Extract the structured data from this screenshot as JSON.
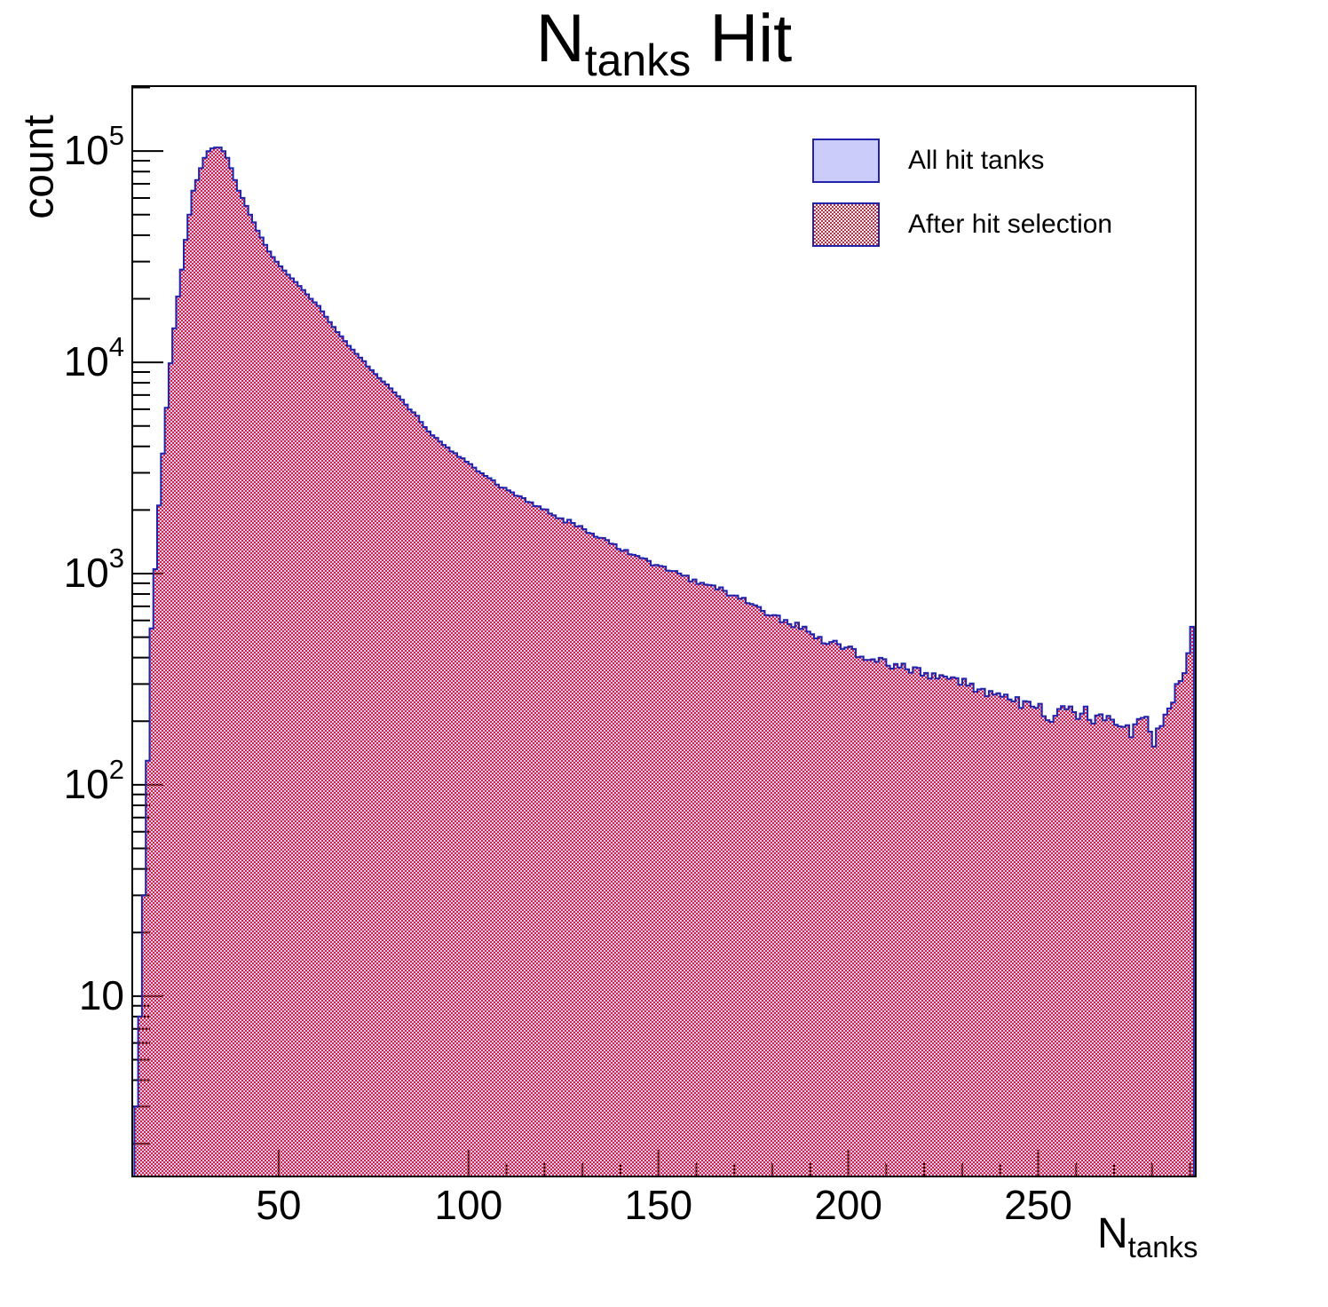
{
  "title": {
    "prefix": "N",
    "subscript": "tanks",
    "suffix": " Hit"
  },
  "y_axis": {
    "title": "count",
    "scale": "log",
    "decade_exponents": [
      1,
      2,
      3,
      4,
      5
    ]
  },
  "x_axis": {
    "title_main": "N",
    "title_sub": "tanks",
    "major_ticks": [
      50,
      100,
      150,
      200,
      250
    ],
    "minor_step": 10
  },
  "legend": {
    "items": [
      {
        "label": "All hit tanks",
        "swatch": "solid"
      },
      {
        "label": "After hit selection",
        "swatch": "checker"
      }
    ]
  },
  "colors": {
    "all_fill": "#ccccfa",
    "selected_red": "#d6253c",
    "outline_blue": "#2222aa",
    "frame": "#000000"
  },
  "chart_data": {
    "type": "bar",
    "subtype": "overlaid-step-histograms",
    "title": "N_tanks Hit",
    "xlabel": "N_tanks",
    "ylabel": "count",
    "ylog": true,
    "xlim": [
      11.45,
      291.5
    ],
    "ylim": [
      1.4,
      203000
    ],
    "bin_width": 1,
    "bin_range": [
      12,
      290
    ],
    "grid": false,
    "legend_position": "top-right",
    "series_note": "Both series overlap almost exactly; 'After hit selection' (red checker) is drawn over 'All hit tanks' (lavender). Bin counts below are anchor points read from the plot; intermediate bins follow log-linear interpolation with Poisson-scale fluctuation.",
    "series": [
      {
        "name": "All hit tanks",
        "source": "anchors"
      },
      {
        "name": "After hit selection",
        "source": "anchors"
      }
    ],
    "anchors": [
      [
        12,
        3
      ],
      [
        13,
        8
      ],
      [
        14,
        30
      ],
      [
        15,
        130
      ],
      [
        16,
        550
      ],
      [
        17,
        1050
      ],
      [
        18,
        2100
      ],
      [
        19,
        3700
      ],
      [
        20,
        6100
      ],
      [
        21,
        9900
      ],
      [
        22,
        14500
      ],
      [
        23,
        20500
      ],
      [
        24,
        27500
      ],
      [
        25,
        38000
      ],
      [
        26,
        50000
      ],
      [
        27,
        65000
      ],
      [
        28,
        73000
      ],
      [
        29,
        83000
      ],
      [
        30,
        93000
      ],
      [
        31,
        100000
      ],
      [
        32,
        103000
      ],
      [
        33,
        104000
      ],
      [
        34,
        104000
      ],
      [
        35,
        100000
      ],
      [
        36,
        93000
      ],
      [
        37,
        83000
      ],
      [
        38,
        73000
      ],
      [
        39,
        65000
      ],
      [
        40,
        60000
      ],
      [
        41,
        55000
      ],
      [
        42,
        50000
      ],
      [
        43,
        46000
      ],
      [
        44,
        42000
      ],
      [
        45,
        39000
      ],
      [
        46,
        36000
      ],
      [
        47,
        33500
      ],
      [
        48,
        31500
      ],
      [
        50,
        28500
      ],
      [
        52,
        26000
      ],
      [
        54,
        24000
      ],
      [
        56,
        22000
      ],
      [
        58,
        20000
      ],
      [
        60,
        18500
      ],
      [
        63,
        15500
      ],
      [
        66,
        13200
      ],
      [
        70,
        11000
      ],
      [
        75,
        8800
      ],
      [
        80,
        7200
      ],
      [
        85,
        5800
      ],
      [
        89,
        4700
      ],
      [
        95,
        3800
      ],
      [
        100,
        3300
      ],
      [
        107,
        2650
      ],
      [
        114,
        2250
      ],
      [
        121,
        1930
      ],
      [
        128,
        1700
      ],
      [
        135,
        1450
      ],
      [
        142,
        1250
      ],
      [
        149,
        1100
      ],
      [
        156,
        980
      ],
      [
        163,
        870
      ],
      [
        170,
        780
      ],
      [
        176,
        680
      ],
      [
        182,
        600
      ],
      [
        188,
        540
      ],
      [
        194,
        480
      ],
      [
        200,
        435
      ],
      [
        206,
        395
      ],
      [
        211,
        366
      ],
      [
        216,
        345
      ],
      [
        220,
        330
      ],
      [
        225,
        315
      ],
      [
        230,
        300
      ],
      [
        236,
        275
      ],
      [
        243,
        256
      ],
      [
        247,
        240
      ],
      [
        250,
        230
      ],
      [
        253,
        192
      ],
      [
        255,
        230
      ],
      [
        258,
        235
      ],
      [
        260,
        210
      ],
      [
        262,
        225
      ],
      [
        264,
        200
      ],
      [
        266,
        225
      ],
      [
        268,
        205
      ],
      [
        270,
        200
      ],
      [
        272,
        188
      ],
      [
        274,
        183
      ],
      [
        276,
        205
      ],
      [
        278,
        210
      ],
      [
        280,
        152
      ],
      [
        281,
        185
      ],
      [
        282,
        190
      ],
      [
        283,
        215
      ],
      [
        284,
        230
      ],
      [
        285,
        245
      ],
      [
        286,
        300
      ],
      [
        287,
        310
      ],
      [
        288,
        338
      ],
      [
        289,
        420
      ],
      [
        290,
        560
      ]
    ],
    "jitter": {
      "seed": 20240,
      "bin_range": [
        65,
        275
      ],
      "coef": 1.5,
      "max_rel": 0.35
    }
  }
}
